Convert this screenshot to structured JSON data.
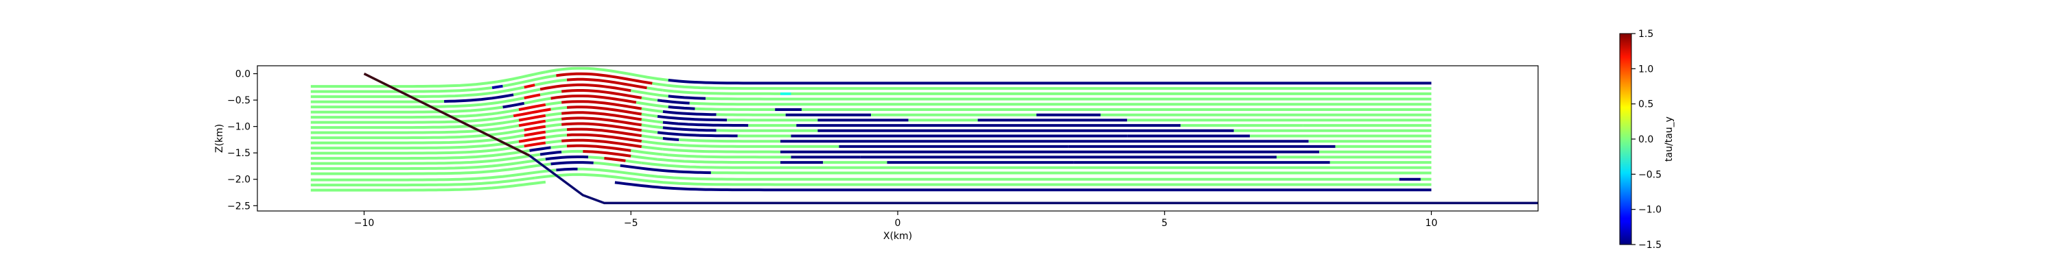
{
  "chart_data": {
    "type": "line",
    "xlabel": "X(km)",
    "ylabel": "Z(km)",
    "xlim": [
      -12.0,
      12.0
    ],
    "ylim": [
      -2.6,
      0.15
    ],
    "x_ticks": [
      -10,
      -5,
      0,
      5,
      10
    ],
    "x_tick_labels": [
      "−10",
      "−5",
      "0",
      "5",
      "10"
    ],
    "y_ticks": [
      0.0,
      -0.5,
      -1.0,
      -1.5,
      -2.0,
      -2.5
    ],
    "y_tick_labels": [
      "0.0",
      "−0.5",
      "−1.0",
      "−1.5",
      "−2.0",
      "−2.5"
    ],
    "grid": false,
    "colorbar": {
      "label": "tau/tau_y",
      "range": [
        -1.5,
        1.5
      ],
      "ticks": [
        1.5,
        1.0,
        0.5,
        0.0,
        -0.5,
        -1.0,
        -1.5
      ],
      "tick_labels": [
        "1.5",
        "1.0",
        "0.5",
        "0.0",
        "−0.5",
        "−1.0",
        "−1.5"
      ],
      "colormap": "jet"
    },
    "boundaries": [
      {
        "name": "ramp-boundary",
        "color": "#3b0a14",
        "x": [
          -10.0,
          -6.9
        ],
        "z": [
          0.0,
          -1.55
        ]
      },
      {
        "name": "ramp-boundary-lower",
        "color": "#0a0a6e",
        "x": [
          -6.9,
          -5.9,
          -5.5,
          12.0
        ],
        "z": [
          -1.55,
          -2.3,
          -2.45,
          -2.45
        ]
      }
    ],
    "series": [
      {
        "z": -0.18,
        "segments": [
          [
            -11.0,
            -6.6,
            0.0
          ],
          [
            -6.6,
            -4.3,
            0.0
          ],
          [
            -4.3,
            10.0,
            -1.5
          ]
        ]
      },
      {
        "z": -0.28,
        "segments": [
          [
            -11.0,
            -7.6,
            0.0
          ],
          [
            -7.6,
            -7.4,
            -1.4
          ],
          [
            -7.4,
            -6.4,
            0.0
          ],
          [
            -6.4,
            -4.6,
            1.3
          ],
          [
            -4.6,
            10.0,
            0.0
          ]
        ]
      },
      {
        "z": -0.38,
        "segments": [
          [
            -11.0,
            -7.0,
            0.0
          ],
          [
            -7.0,
            -6.8,
            1.2
          ],
          [
            -6.8,
            -6.2,
            0.0
          ],
          [
            -6.2,
            -4.7,
            1.3
          ],
          [
            -4.7,
            -4.4,
            0.0
          ],
          [
            -4.4,
            -2.2,
            0.0
          ],
          [
            -2.2,
            -2.0,
            -0.3
          ],
          [
            -2.0,
            10.0,
            0.0
          ]
        ]
      },
      {
        "z": -0.48,
        "segments": [
          [
            -11.0,
            -8.5,
            0.0
          ],
          [
            -8.5,
            -7.2,
            -1.5
          ],
          [
            -7.2,
            -6.7,
            0.0
          ],
          [
            -6.7,
            -5.0,
            1.3
          ],
          [
            -5.0,
            -4.3,
            0.0
          ],
          [
            -4.3,
            -3.6,
            -1.5
          ],
          [
            -3.6,
            10.0,
            0.0
          ]
        ]
      },
      {
        "z": -0.58,
        "segments": [
          [
            -11.0,
            -7.0,
            0.0
          ],
          [
            -7.0,
            -6.7,
            1.2
          ],
          [
            -6.7,
            -6.3,
            0.0
          ],
          [
            -6.3,
            -4.8,
            1.3
          ],
          [
            -4.8,
            -4.5,
            0.0
          ],
          [
            -4.5,
            -3.9,
            -1.5
          ],
          [
            -3.9,
            10.0,
            0.0
          ]
        ]
      },
      {
        "z": -0.68,
        "segments": [
          [
            -11.0,
            -7.4,
            0.0
          ],
          [
            -7.4,
            -7.0,
            -1.5
          ],
          [
            -7.0,
            -6.5,
            0.0
          ],
          [
            -6.5,
            -4.9,
            1.3
          ],
          [
            -4.9,
            -4.3,
            0.0
          ],
          [
            -4.3,
            -3.8,
            -1.5
          ],
          [
            -3.8,
            -2.3,
            0.0
          ],
          [
            -2.3,
            -1.8,
            -1.5
          ],
          [
            -1.8,
            10.0,
            0.0
          ]
        ]
      },
      {
        "z": -0.78,
        "segments": [
          [
            -11.0,
            -7.1,
            0.0
          ],
          [
            -7.1,
            -6.6,
            1.2
          ],
          [
            -6.6,
            -6.3,
            0.0
          ],
          [
            -6.3,
            -4.8,
            1.3
          ],
          [
            -4.8,
            -4.4,
            0.0
          ],
          [
            -4.4,
            -3.4,
            -1.5
          ],
          [
            -3.4,
            -2.1,
            0.0
          ],
          [
            -2.1,
            -0.5,
            -1.5
          ],
          [
            -0.5,
            2.6,
            0.0
          ],
          [
            2.6,
            3.8,
            -1.5
          ],
          [
            3.8,
            10.0,
            0.0
          ]
        ]
      },
      {
        "z": -0.88,
        "segments": [
          [
            -11.0,
            -7.2,
            0.0
          ],
          [
            -7.2,
            -6.5,
            1.2
          ],
          [
            -6.5,
            -6.2,
            0.0
          ],
          [
            -6.2,
            -4.8,
            1.3
          ],
          [
            -4.8,
            -4.5,
            0.0
          ],
          [
            -4.5,
            -3.2,
            -1.5
          ],
          [
            -3.2,
            -1.5,
            0.0
          ],
          [
            -1.5,
            0.2,
            -1.5
          ],
          [
            0.2,
            1.5,
            0.0
          ],
          [
            1.5,
            4.3,
            -1.5
          ],
          [
            4.3,
            10.0,
            0.0
          ]
        ]
      },
      {
        "z": -0.98,
        "segments": [
          [
            -11.0,
            -7.1,
            0.0
          ],
          [
            -7.1,
            -6.6,
            1.2
          ],
          [
            -6.6,
            -6.3,
            0.0
          ],
          [
            -6.3,
            -4.8,
            1.3
          ],
          [
            -4.8,
            -4.4,
            0.0
          ],
          [
            -4.4,
            -2.8,
            -1.5
          ],
          [
            -2.8,
            -1.9,
            0.0
          ],
          [
            -1.9,
            5.3,
            -1.5
          ],
          [
            5.3,
            7.6,
            0.0
          ],
          [
            7.6,
            10.0,
            0.0
          ]
        ]
      },
      {
        "z": -1.08,
        "segments": [
          [
            -11.0,
            -7.1,
            0.0
          ],
          [
            -7.1,
            -6.6,
            1.2
          ],
          [
            -6.6,
            -6.3,
            0.0
          ],
          [
            -6.3,
            -4.8,
            1.3
          ],
          [
            -4.8,
            -4.4,
            0.0
          ],
          [
            -4.4,
            -3.4,
            -1.5
          ],
          [
            -3.4,
            -1.5,
            0.0
          ],
          [
            -1.5,
            6.3,
            -1.5
          ],
          [
            6.3,
            10.0,
            0.0
          ]
        ]
      },
      {
        "z": -1.18,
        "segments": [
          [
            -11.0,
            -7.0,
            0.0
          ],
          [
            -7.0,
            -6.6,
            1.2
          ],
          [
            -6.6,
            -6.3,
            0.0
          ],
          [
            -6.3,
            -4.8,
            1.3
          ],
          [
            -4.8,
            -4.5,
            0.0
          ],
          [
            -4.5,
            -3.0,
            -1.5
          ],
          [
            -3.0,
            -2.0,
            0.0
          ],
          [
            -2.0,
            4.3,
            -1.5
          ],
          [
            4.3,
            6.6,
            -1.5
          ],
          [
            6.6,
            10.0,
            0.0
          ]
        ]
      },
      {
        "z": -1.28,
        "segments": [
          [
            -11.0,
            -7.0,
            0.0
          ],
          [
            -7.0,
            -6.6,
            1.2
          ],
          [
            -6.6,
            -6.2,
            0.0
          ],
          [
            -6.2,
            -4.8,
            1.3
          ],
          [
            -4.8,
            -4.4,
            0.0
          ],
          [
            -4.4,
            -4.1,
            -1.5
          ],
          [
            -4.1,
            -2.2,
            0.0
          ],
          [
            -2.2,
            7.7,
            -1.5
          ],
          [
            7.7,
            10.0,
            0.0
          ]
        ]
      },
      {
        "z": -1.38,
        "segments": [
          [
            -11.0,
            -7.1,
            0.0
          ],
          [
            -7.1,
            -6.6,
            1.2
          ],
          [
            -6.6,
            -6.2,
            0.0
          ],
          [
            -6.2,
            -4.8,
            1.3
          ],
          [
            -4.8,
            -4.2,
            0.0
          ],
          [
            -4.2,
            -1.1,
            0.0
          ],
          [
            -1.1,
            3.2,
            -1.5
          ],
          [
            3.2,
            8.2,
            -1.5
          ],
          [
            8.2,
            10.0,
            0.0
          ]
        ]
      },
      {
        "z": -1.48,
        "segments": [
          [
            -11.0,
            -7.0,
            0.0
          ],
          [
            -7.0,
            -6.6,
            1.2
          ],
          [
            -6.6,
            -6.3,
            0.0
          ],
          [
            -6.3,
            -4.8,
            1.3
          ],
          [
            -4.8,
            -4.4,
            0.0
          ],
          [
            -4.4,
            -2.2,
            0.0
          ],
          [
            -2.2,
            7.9,
            -1.5
          ],
          [
            7.9,
            10.0,
            0.0
          ]
        ]
      },
      {
        "z": -1.58,
        "segments": [
          [
            -11.0,
            -6.9,
            0.0
          ],
          [
            -6.9,
            -6.5,
            -1.5
          ],
          [
            -6.5,
            -6.2,
            0.0
          ],
          [
            -6.2,
            -5.0,
            1.3
          ],
          [
            -5.0,
            -4.4,
            0.0
          ],
          [
            -4.4,
            -2.0,
            0.0
          ],
          [
            -2.0,
            -0.7,
            -1.5
          ],
          [
            -0.7,
            7.1,
            -1.5
          ],
          [
            7.1,
            10.0,
            0.0
          ]
        ]
      },
      {
        "z": -1.68,
        "segments": [
          [
            -11.0,
            -6.7,
            0.0
          ],
          [
            -6.7,
            -6.3,
            -1.5
          ],
          [
            -6.3,
            -5.9,
            0.0
          ],
          [
            -5.9,
            -5.0,
            1.3
          ],
          [
            -5.0,
            -4.5,
            0.0
          ],
          [
            -4.5,
            -2.2,
            0.0
          ],
          [
            -2.2,
            -1.4,
            -1.5
          ],
          [
            -1.4,
            -0.2,
            0.0
          ],
          [
            -0.2,
            3.3,
            -1.5
          ],
          [
            3.3,
            8.1,
            -1.5
          ],
          [
            8.1,
            10.0,
            0.0
          ]
        ]
      },
      {
        "z": -1.78,
        "segments": [
          [
            -11.0,
            -6.6,
            0.0
          ],
          [
            -6.6,
            -5.8,
            -1.5
          ],
          [
            -5.8,
            -5.5,
            0.0
          ],
          [
            -5.5,
            -5.1,
            1.3
          ],
          [
            -5.1,
            -4.8,
            0.0
          ],
          [
            -4.8,
            10.0,
            0.0
          ]
        ]
      },
      {
        "z": -1.88,
        "segments": [
          [
            -11.0,
            -6.5,
            0.0
          ],
          [
            -6.5,
            -5.7,
            -1.5
          ],
          [
            -5.7,
            -5.2,
            0.0
          ],
          [
            -5.2,
            -3.5,
            -1.5
          ],
          [
            -3.5,
            10.0,
            0.0
          ]
        ]
      },
      {
        "z": -2.0,
        "segments": [
          [
            -11.0,
            -6.4,
            0.0
          ],
          [
            -6.4,
            -6.0,
            -1.5
          ],
          [
            -6.0,
            9.4,
            0.0
          ],
          [
            9.4,
            9.8,
            -1.5
          ],
          [
            9.8,
            10.0,
            0.0
          ]
        ]
      },
      {
        "z": -2.1,
        "segments": [
          [
            -11.0,
            -6.8,
            0.0
          ],
          [
            -6.8,
            10.0,
            0.0
          ]
        ]
      },
      {
        "z": -2.2,
        "segments": [
          [
            -11.0,
            -6.6,
            0.0
          ],
          [
            -5.3,
            10.0,
            -1.5
          ]
        ]
      }
    ]
  }
}
